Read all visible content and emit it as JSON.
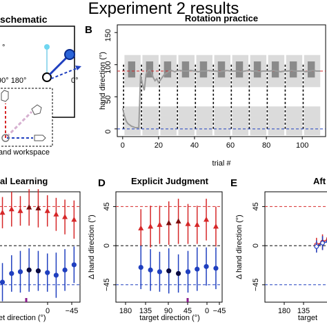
{
  "figure_title": "Experiment 2 results",
  "schematic": {
    "title": "schematic",
    "angle_left": "90° 180°",
    "angle_zero": "0°",
    "angle_small": "°",
    "workspace_label": "and workspace"
  },
  "colors": {
    "rotated": "#d62728",
    "aligned": "#1f3fbf",
    "black": "#000000",
    "gray": "#9a9a9a",
    "gray_band": "#d2d2d2",
    "dark_band": "#6f6f6f",
    "highlight": "#8b1a8b",
    "cyan": "#6fd6f0",
    "pink": "#d6b0d0"
  },
  "panels": {
    "B": "B",
    "C": "",
    "D": "D",
    "E": "E"
  },
  "chart_data": [
    {
      "id": "rotation-practice",
      "type": "line",
      "title": "Rotation practice",
      "xlabel": "trial #",
      "ylabel": "hand direction (°)",
      "xlim": [
        -3,
        113
      ],
      "ylim": [
        -12,
        162
      ],
      "xticks": [
        0,
        20,
        40,
        60,
        80,
        100
      ],
      "yticks": [
        0,
        50,
        100,
        150
      ],
      "reference_lines": [
        {
          "y": 90,
          "color": "rotated"
        },
        {
          "y": 0,
          "color": "aligned"
        }
      ],
      "series": [
        {
          "name": "",
          "x": [
            0,
            1,
            2,
            3,
            4,
            5,
            6,
            7,
            8,
            9,
            10,
            11,
            12,
            13,
            14,
            15,
            16,
            17,
            18,
            19,
            20,
            21,
            22,
            23,
            24,
            25,
            26,
            27,
            28,
            29,
            30,
            32,
            34,
            36,
            38,
            40,
            42,
            44,
            46,
            48,
            50,
            52,
            54,
            56,
            58,
            60,
            62,
            64,
            66,
            68,
            70,
            72,
            74,
            76,
            78,
            80,
            82,
            84,
            86,
            88,
            90,
            92,
            94,
            96,
            98,
            100,
            102,
            104,
            106,
            108,
            110
          ],
          "y": [
            32,
            20,
            12,
            8,
            6,
            4,
            3,
            2,
            2,
            2,
            85,
            70,
            60,
            85,
            90,
            92,
            88,
            80,
            75,
            78,
            72,
            76,
            80,
            84,
            86,
            88,
            90,
            91,
            90,
            89,
            90,
            91,
            90,
            90,
            91,
            90,
            89,
            90,
            90,
            91,
            90,
            90,
            89,
            90,
            91,
            90,
            90,
            90,
            89,
            90,
            91,
            90,
            90,
            89,
            90,
            90,
            90,
            91,
            90,
            89,
            90,
            90,
            91,
            90,
            90,
            90,
            89,
            90,
            91,
            90,
            90
          ]
        }
      ]
    },
    {
      "id": "implicit-learning",
      "type": "scatter",
      "title": "al Learning",
      "xlabel": "et direction (°)",
      "ylabel": "",
      "xlim": [
        155,
        -60
      ],
      "ylim": [
        -65,
        62
      ],
      "xtick_labels": [
        "",
        "0",
        "−45"
      ],
      "yticks": [
        45,
        0,
        -45
      ],
      "reference_lines": [
        {
          "y": 45,
          "color": "rotated"
        },
        {
          "y": 0,
          "color": "black"
        },
        {
          "y": -45,
          "color": "aligned"
        }
      ],
      "series": [
        {
          "name": "",
          "color": "rotated",
          "marker": "triangle",
          "x": [
            135,
            112,
            90,
            68,
            45,
            22,
            0,
            -22,
            -45
          ],
          "y": [
            38,
            42,
            40,
            44,
            43,
            40,
            36,
            33,
            30
          ],
          "err": [
            18,
            20,
            17,
            21,
            22,
            18,
            19,
            20,
            22
          ]
        },
        {
          "name": "",
          "color": "aligned",
          "marker": "circle",
          "x": [
            135,
            112,
            90,
            68,
            45,
            22,
            0,
            -22,
            -45
          ],
          "y": [
            -42,
            -32,
            -30,
            -28,
            -29,
            -31,
            -34,
            -28,
            -22
          ],
          "err": [
            22,
            21,
            24,
            25,
            23,
            22,
            26,
            24,
            21
          ]
        }
      ]
    },
    {
      "id": "explicit-judgment",
      "type": "scatter",
      "title": "Explicit Judgment",
      "xlabel": "target direction (°)",
      "ylabel": "Δ hand direction (°)",
      "xlim": [
        195,
        -60
      ],
      "ylim": [
        -65,
        62
      ],
      "xtick_labels": [
        "180",
        "135",
        "90",
        "45",
        "0",
        "−45"
      ],
      "yticks": [
        45,
        0,
        -45
      ],
      "reference_lines": [
        {
          "y": 45,
          "color": "rotated"
        },
        {
          "y": 0,
          "color": "black"
        },
        {
          "y": -45,
          "color": "aligned"
        }
      ],
      "series": [
        {
          "name": "",
          "color": "rotated",
          "marker": "triangle",
          "x": [
            135,
            112,
            90,
            68,
            45,
            22,
            0,
            -22,
            -45
          ],
          "y": [
            20,
            22,
            24,
            26,
            28,
            25,
            24,
            30,
            22
          ],
          "err": [
            22,
            24,
            22,
            25,
            26,
            23,
            22,
            24,
            23
          ]
        },
        {
          "name": "",
          "color": "aligned",
          "marker": "circle",
          "x": [
            135,
            112,
            90,
            68,
            45,
            22,
            0,
            -22,
            -45
          ],
          "y": [
            -25,
            -28,
            -30,
            -29,
            -32,
            -30,
            -27,
            -24,
            -26
          ],
          "err": [
            25,
            24,
            23,
            26,
            22,
            24,
            25,
            22,
            24
          ]
        }
      ]
    },
    {
      "id": "aftereffects",
      "type": "line",
      "title": "Aft",
      "xlabel": "target",
      "ylabel": "Δ hand direction (°)",
      "xlim": [
        195,
        118
      ],
      "ylim": [
        -65,
        62
      ],
      "xtick_labels": [
        "180",
        "135"
      ],
      "yticks": [
        45,
        0,
        -45
      ],
      "reference_lines": [
        {
          "y": 45,
          "color": "rotated"
        },
        {
          "y": 0,
          "color": "black"
        },
        {
          "y": -45,
          "color": "aligned"
        }
      ],
      "series": [
        {
          "name": "",
          "color": "rotated",
          "x": [
            135,
            128,
            121
          ],
          "y": [
            1,
            4,
            8
          ],
          "err": [
            8,
            9,
            10
          ]
        },
        {
          "name": "",
          "color": "aligned",
          "x": [
            135,
            128,
            121
          ],
          "y": [
            -1,
            3,
            5
          ],
          "err": [
            7,
            8,
            9
          ]
        }
      ]
    }
  ]
}
